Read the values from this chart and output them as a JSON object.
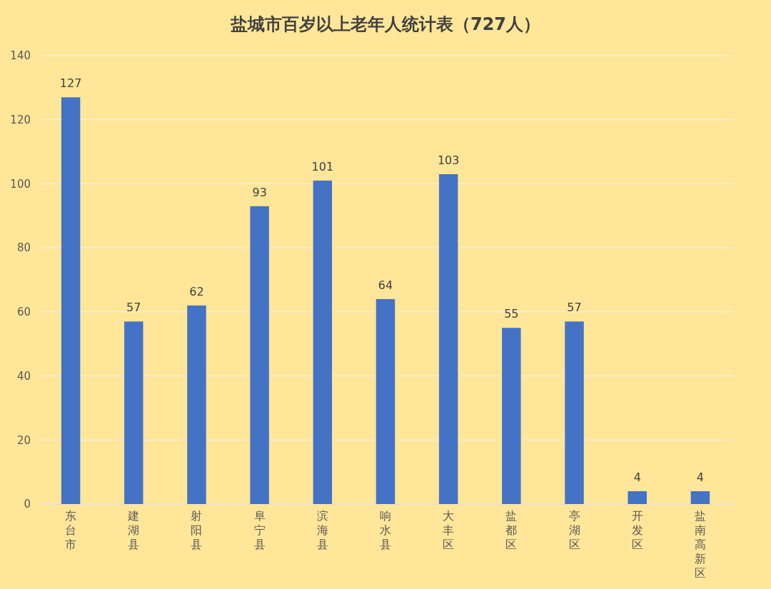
{
  "chart_data": {
    "type": "bar",
    "title": "盐城市百岁以上老年人统计表（727人）",
    "categories": [
      "东台市",
      "建湖县",
      "射阳县",
      "阜宁县",
      "滨海县",
      "响水县",
      "大丰区",
      "盐都区",
      "亭湖区",
      "开发区",
      "盐南高新区"
    ],
    "values": [
      127,
      57,
      62,
      93,
      101,
      64,
      103,
      55,
      57,
      4,
      4
    ],
    "color": "#4472c4",
    "ylim": [
      0,
      140
    ],
    "yticks": [
      0,
      20,
      40,
      60,
      80,
      100,
      120,
      140
    ],
    "grid": "y",
    "data_labels": true
  }
}
